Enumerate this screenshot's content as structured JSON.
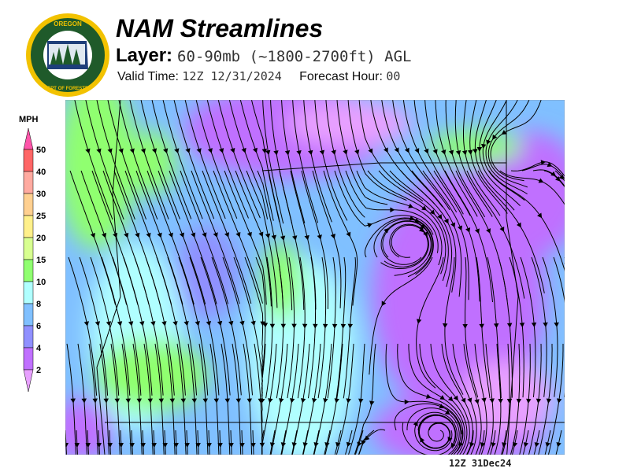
{
  "header": {
    "logo_text": "OREGON DEPARTMENT OF FORESTRY",
    "title": "NAM Streamlines",
    "layer_label": "Layer:",
    "layer_value": "60-90mb (~1800-2700ft) AGL",
    "valid_label": "Valid Time:",
    "valid_value": "12Z 12/31/2024",
    "forecast_label": "Forecast Hour:",
    "forecast_value": "00"
  },
  "legend": {
    "unit": "MPH",
    "bins": [
      {
        "label": "50",
        "color": "#ff6666"
      },
      {
        "label": "40",
        "color": "#ffaaa0"
      },
      {
        "label": "30",
        "color": "#ffd090"
      },
      {
        "label": "25",
        "color": "#fff08a"
      },
      {
        "label": "20",
        "color": "#d8ff90"
      },
      {
        "label": "15",
        "color": "#90ff70"
      },
      {
        "label": "10",
        "color": "#b0ffff"
      },
      {
        "label": "8",
        "color": "#80c0ff"
      },
      {
        "label": "6",
        "color": "#9090ff"
      },
      {
        "label": "4",
        "color": "#c070ff"
      },
      {
        "label": "2",
        "color": null
      }
    ],
    "over_color": "#ff55aa",
    "under_color": "#e8a0ff"
  },
  "map": {
    "stamp": "12Z 31Dec24",
    "base_color": "#80c0ff"
  }
}
